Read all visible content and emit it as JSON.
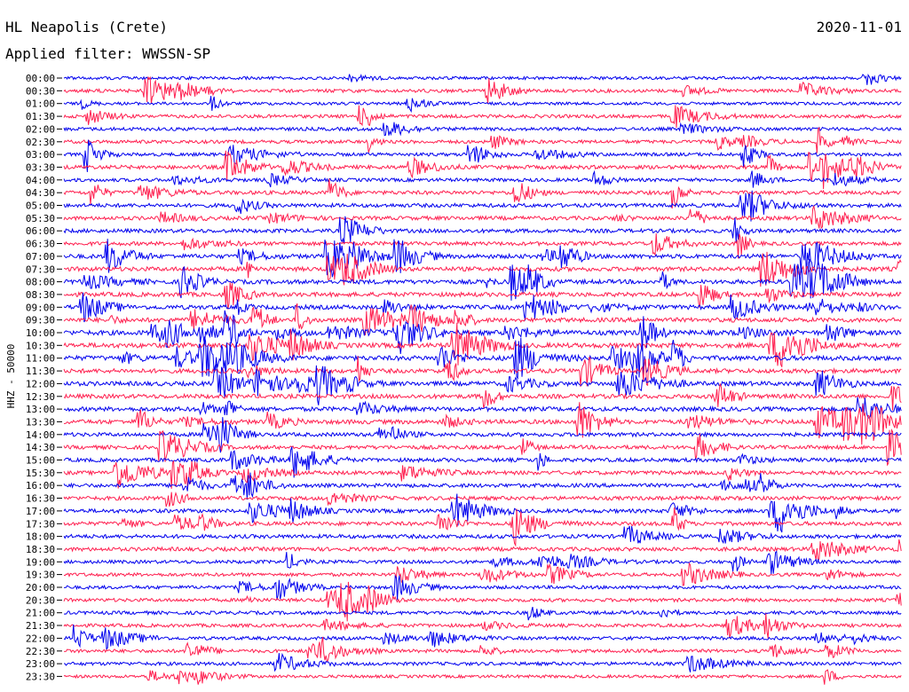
{
  "header": {
    "station": "HL Neapolis (Crete)",
    "date": "2020-11-01",
    "filter": "Applied filter: WWSSN-SP"
  },
  "chart_data": {
    "type": "line",
    "title": "HL Neapolis (Crete)",
    "date": "2020-11-01",
    "filter": "Applied filter: WWSSN-SP",
    "ylabel": "HHZ - 50000",
    "xlabel": "",
    "row_interval_minutes": 30,
    "trace_colors": [
      "#0000ee",
      "#ff1f4f"
    ],
    "grid": false,
    "rows": [
      {
        "label": "00:00",
        "activity": 1
      },
      {
        "label": "00:30",
        "activity": 2
      },
      {
        "label": "01:00",
        "activity": 1
      },
      {
        "label": "01:30",
        "activity": 2
      },
      {
        "label": "02:00",
        "activity": 2
      },
      {
        "label": "02:30",
        "activity": 2
      },
      {
        "label": "03:00",
        "activity": 2
      },
      {
        "label": "03:30",
        "activity": 3
      },
      {
        "label": "04:00",
        "activity": 2
      },
      {
        "label": "04:30",
        "activity": 3
      },
      {
        "label": "05:00",
        "activity": 3
      },
      {
        "label": "05:30",
        "activity": 3
      },
      {
        "label": "06:00",
        "activity": 3
      },
      {
        "label": "06:30",
        "activity": 3
      },
      {
        "label": "07:00",
        "activity": 4
      },
      {
        "label": "07:30",
        "activity": 4
      },
      {
        "label": "08:00",
        "activity": 4
      },
      {
        "label": "08:30",
        "activity": 4
      },
      {
        "label": "09:00",
        "activity": 4
      },
      {
        "label": "09:30",
        "activity": 4
      },
      {
        "label": "10:00",
        "activity": 5
      },
      {
        "label": "10:30",
        "activity": 5
      },
      {
        "label": "11:00",
        "activity": 5
      },
      {
        "label": "11:30",
        "activity": 4
      },
      {
        "label": "12:00",
        "activity": 4
      },
      {
        "label": "12:30",
        "activity": 4
      },
      {
        "label": "13:00",
        "activity": 4
      },
      {
        "label": "13:30",
        "activity": 4
      },
      {
        "label": "14:00",
        "activity": 3
      },
      {
        "label": "14:30",
        "activity": 3
      },
      {
        "label": "15:00",
        "activity": 3
      },
      {
        "label": "15:30",
        "activity": 3
      },
      {
        "label": "16:00",
        "activity": 3
      },
      {
        "label": "16:30",
        "activity": 3
      },
      {
        "label": "17:00",
        "activity": 3
      },
      {
        "label": "17:30",
        "activity": 3
      },
      {
        "label": "18:00",
        "activity": 3
      },
      {
        "label": "18:30",
        "activity": 3
      },
      {
        "label": "19:00",
        "activity": 2
      },
      {
        "label": "19:30",
        "activity": 2
      },
      {
        "label": "20:00",
        "activity": 2
      },
      {
        "label": "20:30",
        "activity": 2
      },
      {
        "label": "21:00",
        "activity": 2
      },
      {
        "label": "21:30",
        "activity": 2
      },
      {
        "label": "22:00",
        "activity": 2
      },
      {
        "label": "22:30",
        "activity": 2
      },
      {
        "label": "23:00",
        "activity": 2
      },
      {
        "label": "23:30",
        "activity": 1
      }
    ]
  }
}
